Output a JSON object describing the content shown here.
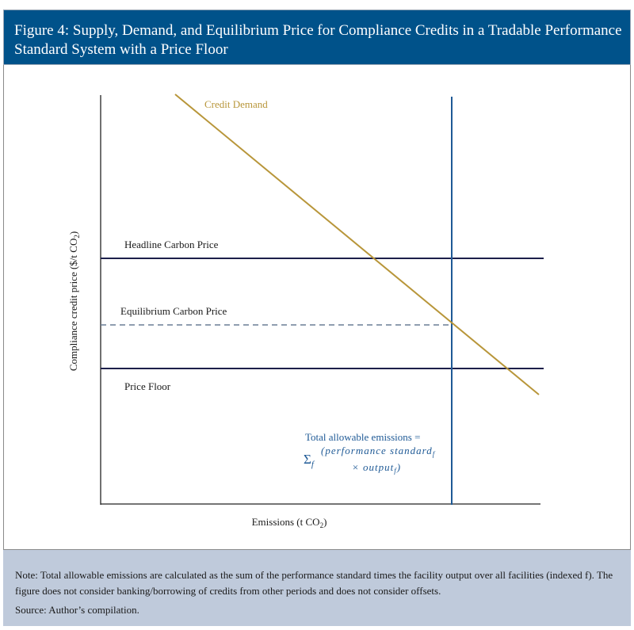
{
  "title": "Figure 4: Supply, Demand, and Equilibrium Price for Compliance Credits in a Tradable Performance Standard System with a Price Floor",
  "chart_data": {
    "type": "line",
    "title": "Figure 4: Supply, Demand, and Equilibrium Price for Compliance Credits in a Tradable Performance Standard System with a Price Floor",
    "xlabel": "Emissions (t CO",
    "xlabel_sub": "2",
    "xlabel_end": ")",
    "ylabel": "Compliance credit price ($/t CO",
    "ylabel_sub": "2",
    "ylabel_end": ")",
    "grid": false,
    "ticks": "none",
    "series": [
      {
        "name": "Credit Demand",
        "kind": "downward-sloping line",
        "color": "#b8963a"
      },
      {
        "name": "Headline Carbon Price",
        "kind": "horizontal line",
        "color": "#1c1f4a"
      },
      {
        "name": "Equilibrium Carbon Price",
        "kind": "horizontal dashed line",
        "color": "#6a7d96"
      },
      {
        "name": "Price Floor",
        "kind": "horizontal line",
        "color": "#1c1f4a"
      },
      {
        "name": "Total allowable emissions",
        "kind": "vertical line",
        "color": "#1f5a96"
      }
    ],
    "annotation": {
      "line1": "Total allowable emissions =",
      "sigma": "Σ",
      "sigma_sub": "f",
      "formula_a": "(performance standard",
      "formula_a_sub": "f",
      "formula_b": "× output",
      "formula_b_sub": "f",
      "formula_b_end": ")",
      "color": "#1f5a96"
    }
  },
  "note": "Note: Total allowable emissions are calculated as the sum of the performance standard times the facility output over all facilities (indexed f). The figure does not consider banking/borrowing of credits from other periods and does not consider offsets.",
  "source": "Source: Author’s compilation.",
  "colors": {
    "header": "#00528a",
    "note_bg": "#bfcadb"
  }
}
